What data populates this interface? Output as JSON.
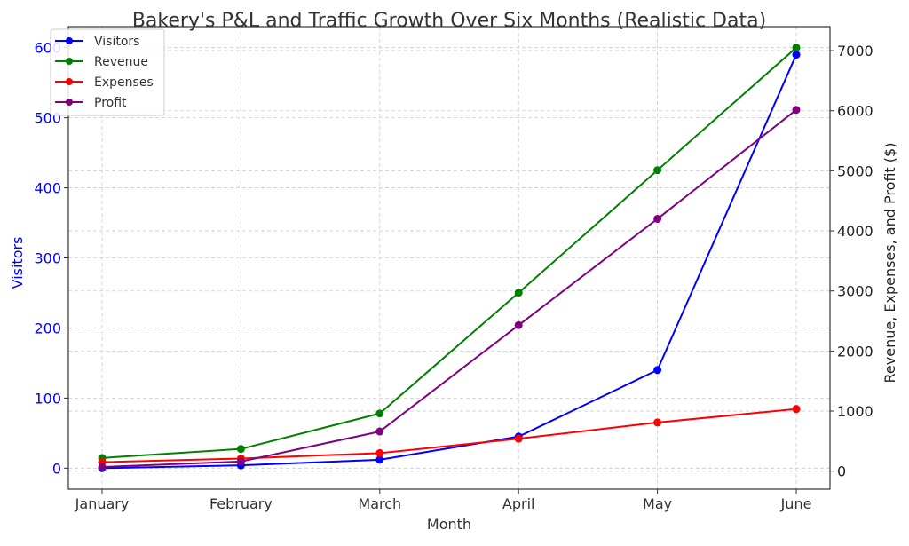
{
  "chart_data": {
    "type": "line",
    "title": "Bakery's P&L and Traffic Growth Over Six Months (Realistic Data)",
    "xlabel": "Month",
    "ylabel_left": "Visitors",
    "ylabel_right": "Revenue, Expenses, and Profit ($)",
    "categories": [
      "January",
      "February",
      "March",
      "April",
      "May",
      "June"
    ],
    "ylim_left": [
      -30,
      630
    ],
    "ylim_right": [
      -300,
      7400
    ],
    "yticks_left": [
      0,
      100,
      200,
      300,
      400,
      500,
      600
    ],
    "yticks_right": [
      0,
      1000,
      2000,
      3000,
      4000,
      5000,
      6000,
      7000
    ],
    "grid": true,
    "legend_position": "top-left",
    "series": [
      {
        "name": "Visitors",
        "axis": "left",
        "color": "#0000ff",
        "values": [
          0,
          4,
          12,
          45,
          140,
          590
        ]
      },
      {
        "name": "Revenue",
        "axis": "right",
        "color": "#008000",
        "values": [
          220,
          370,
          960,
          2970,
          5010,
          7050
        ]
      },
      {
        "name": "Expenses",
        "axis": "right",
        "color": "#ff0000",
        "values": [
          150,
          210,
          300,
          540,
          810,
          1035
        ]
      },
      {
        "name": "Profit",
        "axis": "right",
        "color": "#800080",
        "values": [
          70,
          160,
          660,
          2430,
          4200,
          6015
        ]
      }
    ]
  }
}
